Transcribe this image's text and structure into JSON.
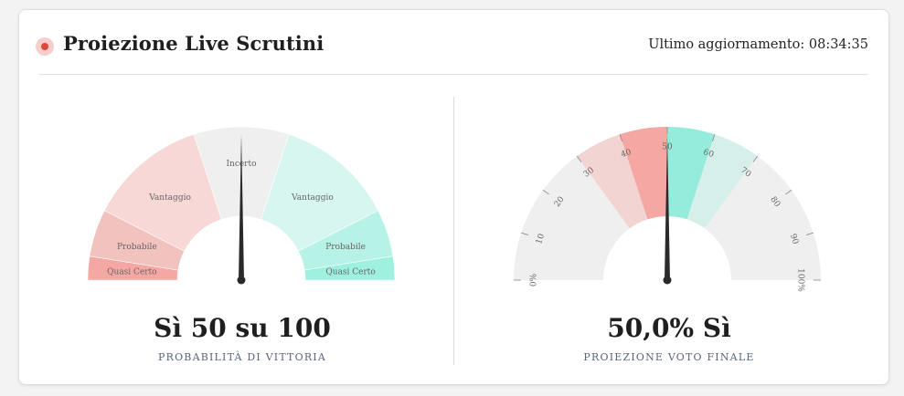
{
  "header": {
    "title": "Proiezione Live Scrutini",
    "updated_label": "Ultimo aggiornamento: 08:34:35"
  },
  "colors": {
    "live_dot": "#e2463b",
    "no_quasi_certo": "#f4a7a3",
    "no_probabile": "#f2c2bf",
    "no_vantaggio": "#f8d8d6",
    "incerto": "#efefef",
    "si_vantaggio": "#d7f6ef",
    "si_probabile": "#b6f2e6",
    "si_quasi_certo": "#9ef0df",
    "needle": "#2a2a2a"
  },
  "probability_gauge": {
    "segments": [
      {
        "label": "Quasi Certo",
        "from": 0,
        "to": 5
      },
      {
        "label": "Probabile",
        "from": 5,
        "to": 15
      },
      {
        "label": "Vantaggio",
        "from": 15,
        "to": 40
      },
      {
        "label": "Incerto",
        "from": 40,
        "to": 60
      },
      {
        "label": "Vantaggio",
        "from": 60,
        "to": 85
      },
      {
        "label": "Probabile",
        "from": 85,
        "to": 95
      },
      {
        "label": "Quasi Certo",
        "from": 95,
        "to": 100
      }
    ],
    "needle_value": 50,
    "value_text": "Sì 50 su 100",
    "caption": "PROBABILITÀ DI VITTORIA"
  },
  "vote_gauge": {
    "ticks": [
      "0%",
      "10",
      "20",
      "30",
      "40",
      "50",
      "60",
      "70",
      "80",
      "90",
      "100%"
    ],
    "bands": [
      {
        "from": 0,
        "to": 30,
        "color": "#efefef"
      },
      {
        "from": 30,
        "to": 40,
        "color": "#f2d4d2"
      },
      {
        "from": 40,
        "to": 50,
        "color": "#f4a7a3"
      },
      {
        "from": 50,
        "to": 60,
        "color": "#96ecdc"
      },
      {
        "from": 60,
        "to": 70,
        "color": "#d7efeb"
      },
      {
        "from": 70,
        "to": 100,
        "color": "#efefef"
      }
    ],
    "needle_value": 50,
    "value_text": "50,0% Sì",
    "caption": "PROIEZIONE VOTO FINALE"
  }
}
